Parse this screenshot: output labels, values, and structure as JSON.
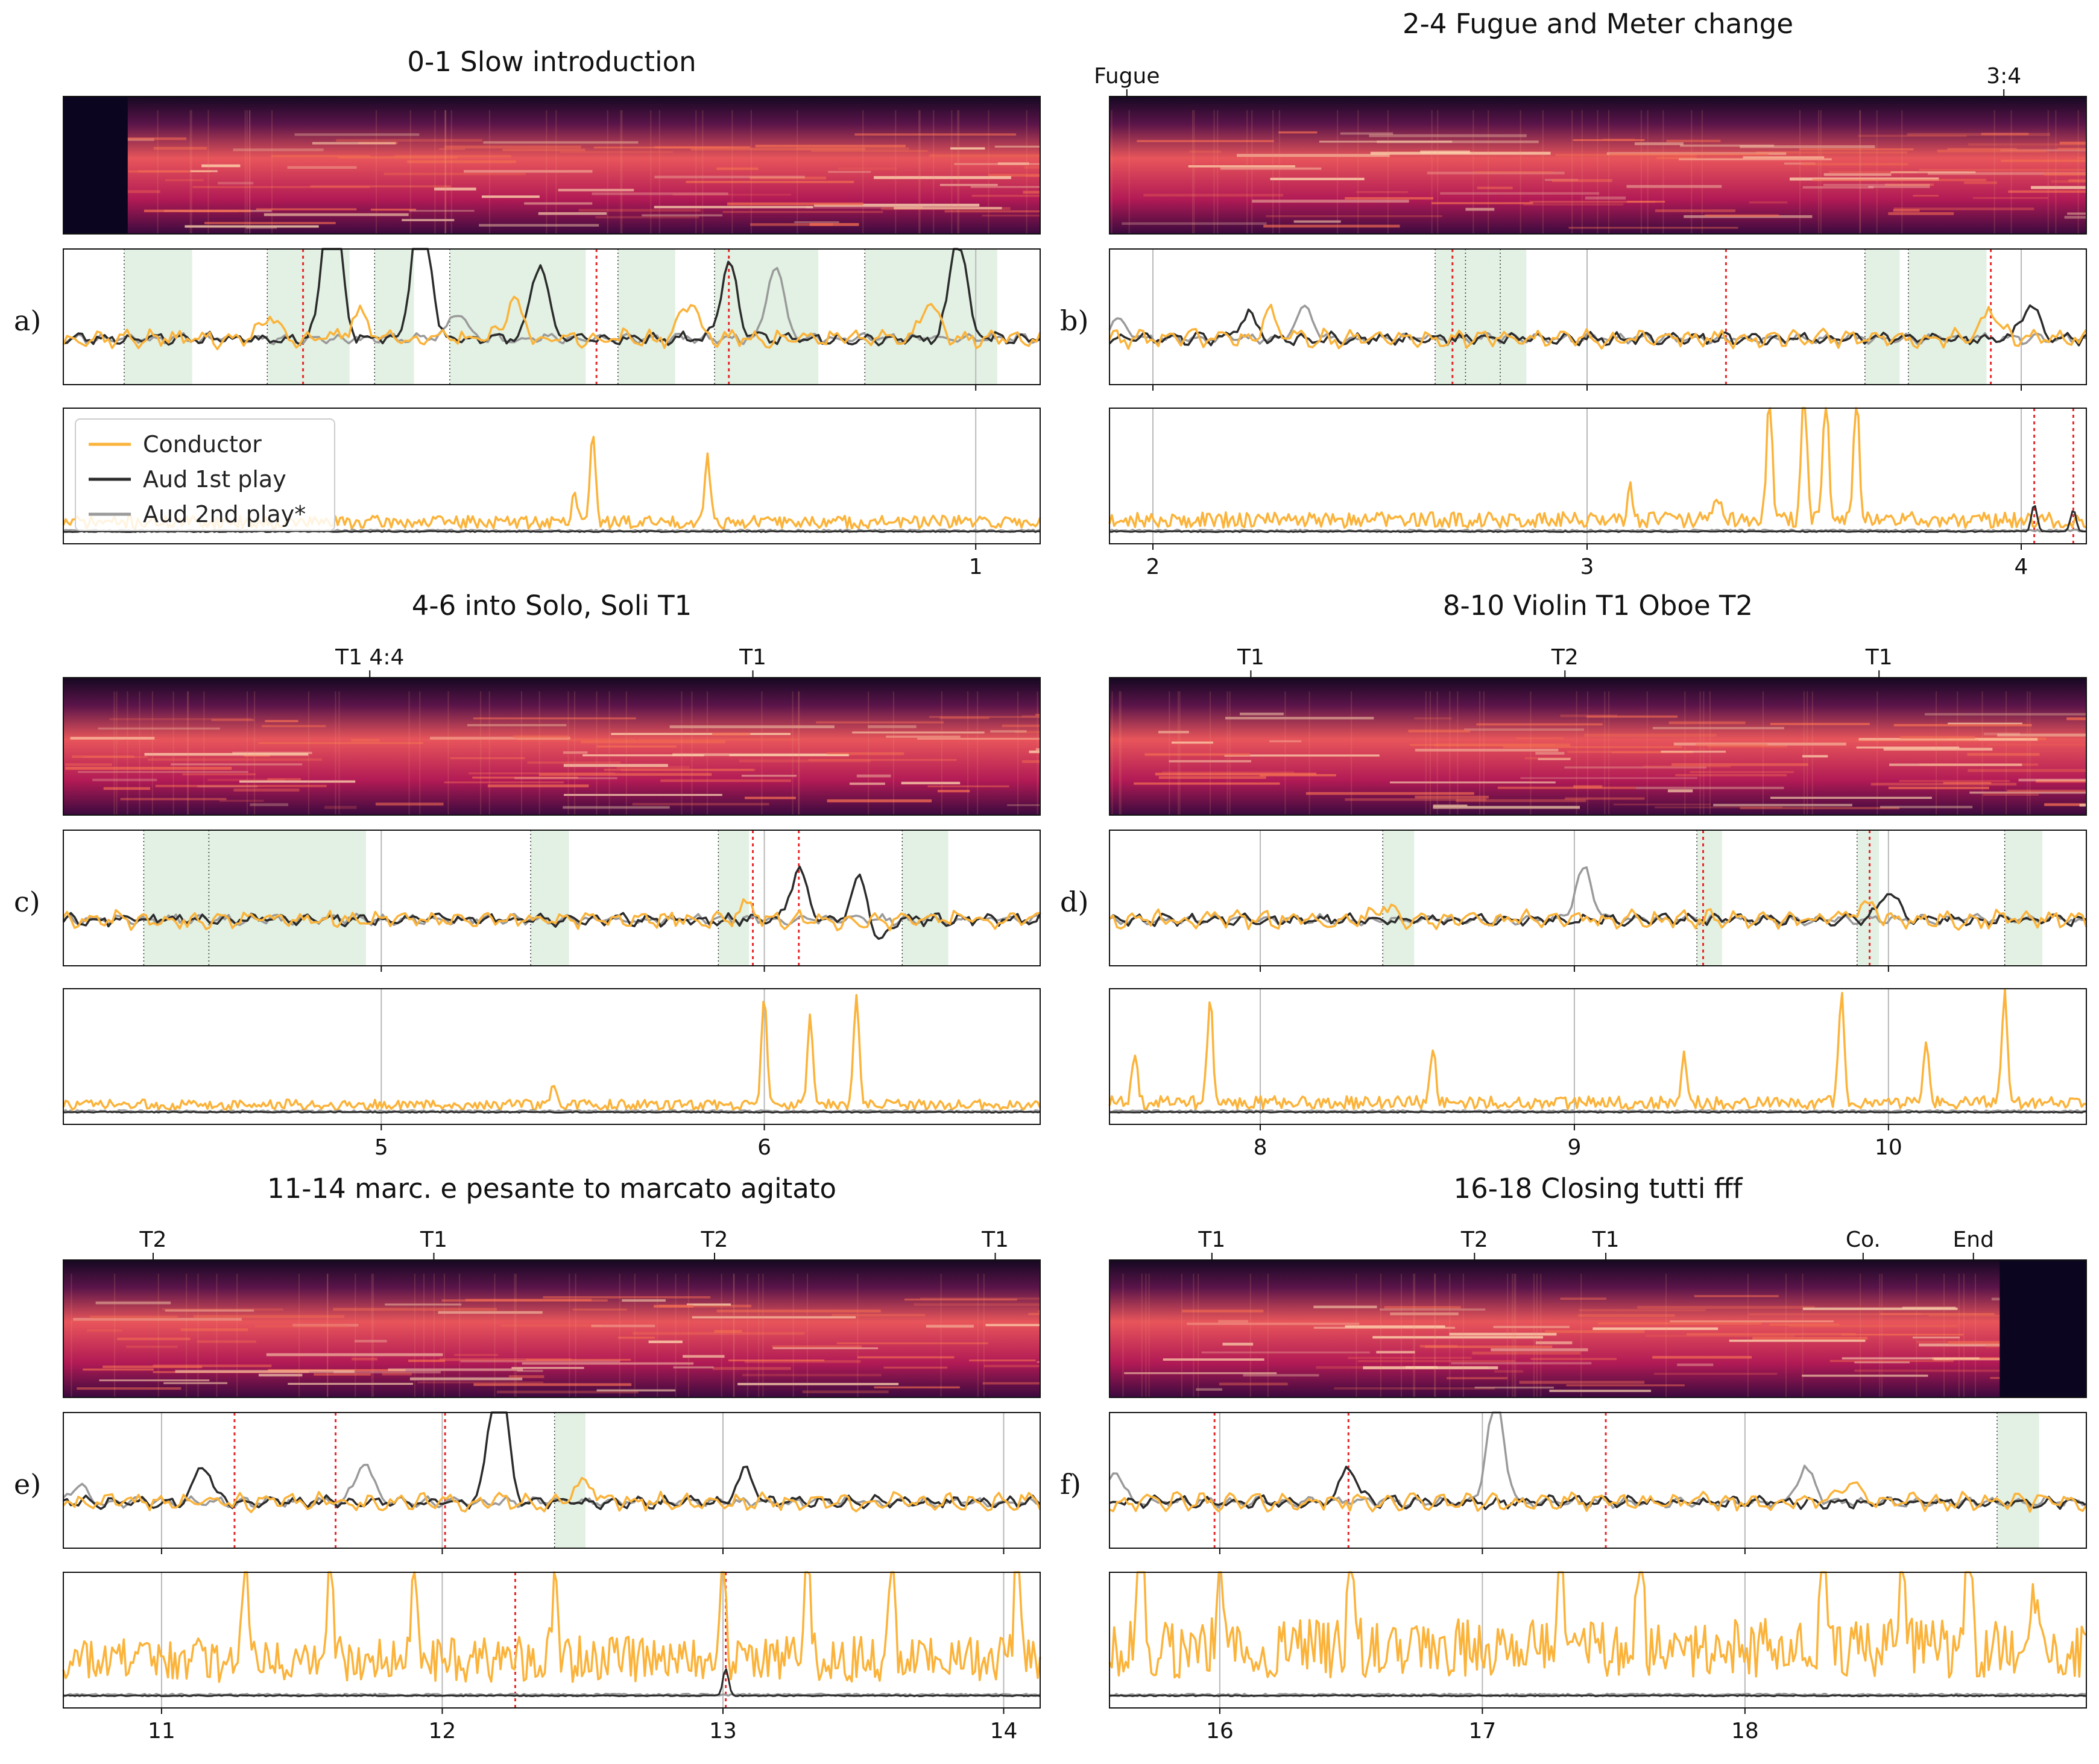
{
  "chart_data": {
    "type": "line",
    "legend": {
      "placement": "top-left",
      "entries": [
        {
          "name": "Conductor",
          "color": "#fbb33a"
        },
        {
          "name": "Aud 1st play",
          "color": "#2b2b2b"
        },
        {
          "name": "Aud 2nd play*",
          "color": "#9a9a9a"
        }
      ]
    },
    "colors": {
      "conductor": "#fbb33a",
      "aud1": "#2b2b2b",
      "aud2": "#9a9a9a",
      "shade": "#e2f1e3",
      "redline": "#e8262a",
      "grid": "#b9b9b9"
    },
    "panels": [
      {
        "label": "a)",
        "title": "0-1 Slow introduction",
        "xlim": [
          -1.55,
          1.18
        ],
        "ticks": [
          1
        ],
        "markers": [],
        "silence": {
          "start": -1.55,
          "end": -1.37
        },
        "shaded": [
          [
            -1.38,
            -1.19
          ],
          [
            -0.98,
            -0.75
          ],
          [
            -0.68,
            -0.57
          ],
          [
            -0.47,
            -0.09
          ],
          [
            0.0,
            0.16
          ],
          [
            0.27,
            0.56
          ],
          [
            0.69,
            1.06
          ]
        ],
        "red_mid": [
          -0.88,
          -0.06,
          0.31
        ],
        "red_low": [],
        "mid_peaks": [
          [
            -0.97,
            0.35
          ],
          [
            -0.72,
            0.4
          ],
          [
            -0.29,
            0.55
          ],
          [
            0.2,
            0.55
          ],
          [
            0.87,
            0.55
          ]
        ],
        "aud1_events": [
          [
            -0.8,
            2.6
          ],
          [
            -0.55,
            2.4
          ],
          [
            -0.22,
            1.1
          ],
          [
            0.31,
            1.1
          ],
          [
            0.95,
            1.5
          ]
        ],
        "aud2_events": [
          [
            -0.45,
            0.4
          ],
          [
            0.44,
            1.1
          ]
        ],
        "cond_low_spikes": [
          [
            -0.07,
            0.78
          ],
          [
            0.25,
            0.65
          ],
          [
            -0.12,
            0.28
          ]
        ],
        "cond_low_level": 0.1,
        "aud1_low_spikes": [],
        "legend": true
      },
      {
        "label": "b)",
        "title": "2-4 Fugue and Meter change",
        "xlim": [
          1.9,
          4.15
        ],
        "ticks": [
          2,
          3,
          4
        ],
        "markers": [
          {
            "label": "Fugue",
            "x": 1.94
          },
          {
            "label": "3:4",
            "x": 3.96
          }
        ],
        "shaded": [
          [
            2.65,
            2.72
          ],
          [
            2.72,
            2.8
          ],
          [
            2.8,
            2.86
          ],
          [
            3.64,
            3.72
          ],
          [
            3.74,
            3.92
          ]
        ],
        "red_mid": [
          2.69,
          3.32,
          3.93
        ],
        "red_low": [
          4.03,
          4.12
        ],
        "mid_peaks": [
          [
            2.27,
            0.35
          ],
          [
            3.93,
            0.45
          ]
        ],
        "aud1_events": [
          [
            2.22,
            0.35
          ],
          [
            4.02,
            0.5
          ]
        ],
        "aud2_events": [
          [
            2.35,
            0.45
          ],
          [
            1.92,
            0.3
          ]
        ],
        "cond_low_spikes": [
          [
            3.42,
            1.2
          ],
          [
            3.5,
            1.2
          ],
          [
            3.55,
            1.2
          ],
          [
            3.62,
            1.2
          ],
          [
            3.1,
            0.3
          ],
          [
            3.3,
            0.25
          ]
        ],
        "cond_low_level": 0.12,
        "aud1_low_spikes": [
          [
            4.03,
            0.25
          ],
          [
            4.12,
            0.2
          ]
        ]
      },
      {
        "label": "c)",
        "title": "4-6 into Solo, Soli T1",
        "xlim": [
          4.17,
          6.72
        ],
        "ticks": [
          5,
          6
        ],
        "markers": [
          {
            "label": "T1 4:4",
            "x": 4.97
          },
          {
            "label": "T1",
            "x": 5.97
          }
        ],
        "shaded": [
          [
            4.38,
            4.55
          ],
          [
            4.55,
            4.96
          ],
          [
            5.39,
            5.49
          ],
          [
            5.88,
            5.96
          ],
          [
            6.36,
            6.48
          ]
        ],
        "red_mid": [
          5.97,
          6.09
        ],
        "red_low": [],
        "mid_peaks": [
          [
            5.95,
            0.2
          ]
        ],
        "aud1_events": [
          [
            6.09,
            0.75
          ],
          [
            6.25,
            0.65
          ],
          [
            6.3,
            -0.35
          ]
        ],
        "aud2_events": [],
        "cond_low_spikes": [
          [
            6.0,
            1.0
          ],
          [
            6.12,
            0.8
          ],
          [
            6.24,
            1.0
          ],
          [
            5.45,
            0.15
          ]
        ],
        "cond_low_level": 0.08,
        "aud1_low_spikes": []
      },
      {
        "label": "d)",
        "title": "8-10 Violin T1 Oboe T2",
        "xlim": [
          7.52,
          10.63
        ],
        "ticks": [
          8,
          9,
          10
        ],
        "markers": [
          {
            "label": "T1",
            "x": 7.97
          },
          {
            "label": "T2",
            "x": 8.97
          },
          {
            "label": "T1",
            "x": 9.97
          }
        ],
        "shaded": [
          [
            8.39,
            8.49
          ],
          [
            9.39,
            9.47
          ],
          [
            9.9,
            9.97
          ],
          [
            10.37,
            10.49
          ]
        ],
        "red_mid": [
          9.41,
          9.94
        ],
        "red_low": [],
        "mid_peaks": [
          [
            8.4,
            0.2
          ],
          [
            9.93,
            0.25
          ]
        ],
        "aud1_events": [
          [
            10.0,
            0.45
          ]
        ],
        "aud2_events": [
          [
            9.03,
            0.75
          ]
        ],
        "cond_low_spikes": [
          [
            7.84,
            1.0
          ],
          [
            7.6,
            0.45
          ],
          [
            9.85,
            1.0
          ],
          [
            10.37,
            1.0
          ],
          [
            8.55,
            0.5
          ],
          [
            9.35,
            0.45
          ],
          [
            10.12,
            0.6
          ]
        ],
        "cond_low_level": 0.1,
        "aud1_low_spikes": []
      },
      {
        "label": "e)",
        "title": "11-14 marc. e pesante to marcato agitato",
        "xlim": [
          10.65,
          14.13
        ],
        "ticks": [
          11,
          12,
          13,
          14
        ],
        "markers": [
          {
            "label": "T2",
            "x": 10.97
          },
          {
            "label": "T1",
            "x": 11.97
          },
          {
            "label": "T2",
            "x": 12.97
          },
          {
            "label": "T1",
            "x": 13.97
          }
        ],
        "shaded": [
          [
            12.4,
            12.51
          ]
        ],
        "red_mid": [
          11.26,
          11.62,
          12.01
        ],
        "red_low": [
          12.26,
          13.01
        ],
        "mid_peaks": [
          [
            12.51,
            0.35
          ]
        ],
        "aud1_events": [
          [
            11.15,
            0.55
          ],
          [
            12.2,
            2.4
          ],
          [
            13.08,
            0.45
          ]
        ],
        "aud2_events": [
          [
            11.72,
            0.6
          ],
          [
            10.7,
            0.25
          ]
        ],
        "cond_low_spikes": [
          [
            11.3,
            1.2
          ],
          [
            11.6,
            1.2
          ],
          [
            11.9,
            1.1
          ],
          [
            12.4,
            0.7
          ],
          [
            13.0,
            1.2
          ],
          [
            13.3,
            1.2
          ],
          [
            13.6,
            1.0
          ],
          [
            14.05,
            1.2
          ]
        ],
        "cond_low_level": 0.35,
        "aud1_low_spikes": [
          [
            13.01,
            0.25
          ]
        ]
      },
      {
        "label": "f)",
        "title": "16-18 Closing tutti fff",
        "xlim": [
          15.58,
          19.3
        ],
        "ticks": [
          16,
          17,
          18
        ],
        "markers": [
          {
            "label": "T1",
            "x": 15.97
          },
          {
            "label": "T2",
            "x": 16.97
          },
          {
            "label": "T1",
            "x": 17.47
          },
          {
            "label": "Co.",
            "x": 18.45
          },
          {
            "label": "End",
            "x": 18.87
          }
        ],
        "silence": {
          "start": 18.97,
          "end": 19.3
        },
        "shaded": [
          [
            18.96,
            19.12
          ]
        ],
        "red_mid": [
          15.98,
          16.49,
          17.47
        ],
        "red_low": [],
        "mid_peaks": [
          [
            18.4,
            0.35
          ]
        ],
        "aud1_events": [
          [
            16.49,
            0.5
          ]
        ],
        "aud2_events": [
          [
            17.05,
            1.6
          ],
          [
            15.6,
            0.45
          ],
          [
            18.23,
            0.5
          ]
        ],
        "cond_low_spikes": [
          [
            15.7,
            1.2
          ],
          [
            16.0,
            1.0
          ],
          [
            16.5,
            1.2
          ],
          [
            17.3,
            1.2
          ],
          [
            17.6,
            1.2
          ],
          [
            18.3,
            1.2
          ],
          [
            18.6,
            1.2
          ],
          [
            18.85,
            1.2
          ],
          [
            19.1,
            0.6
          ]
        ],
        "cond_low_level": 0.45,
        "aud1_low_spikes": []
      }
    ]
  }
}
